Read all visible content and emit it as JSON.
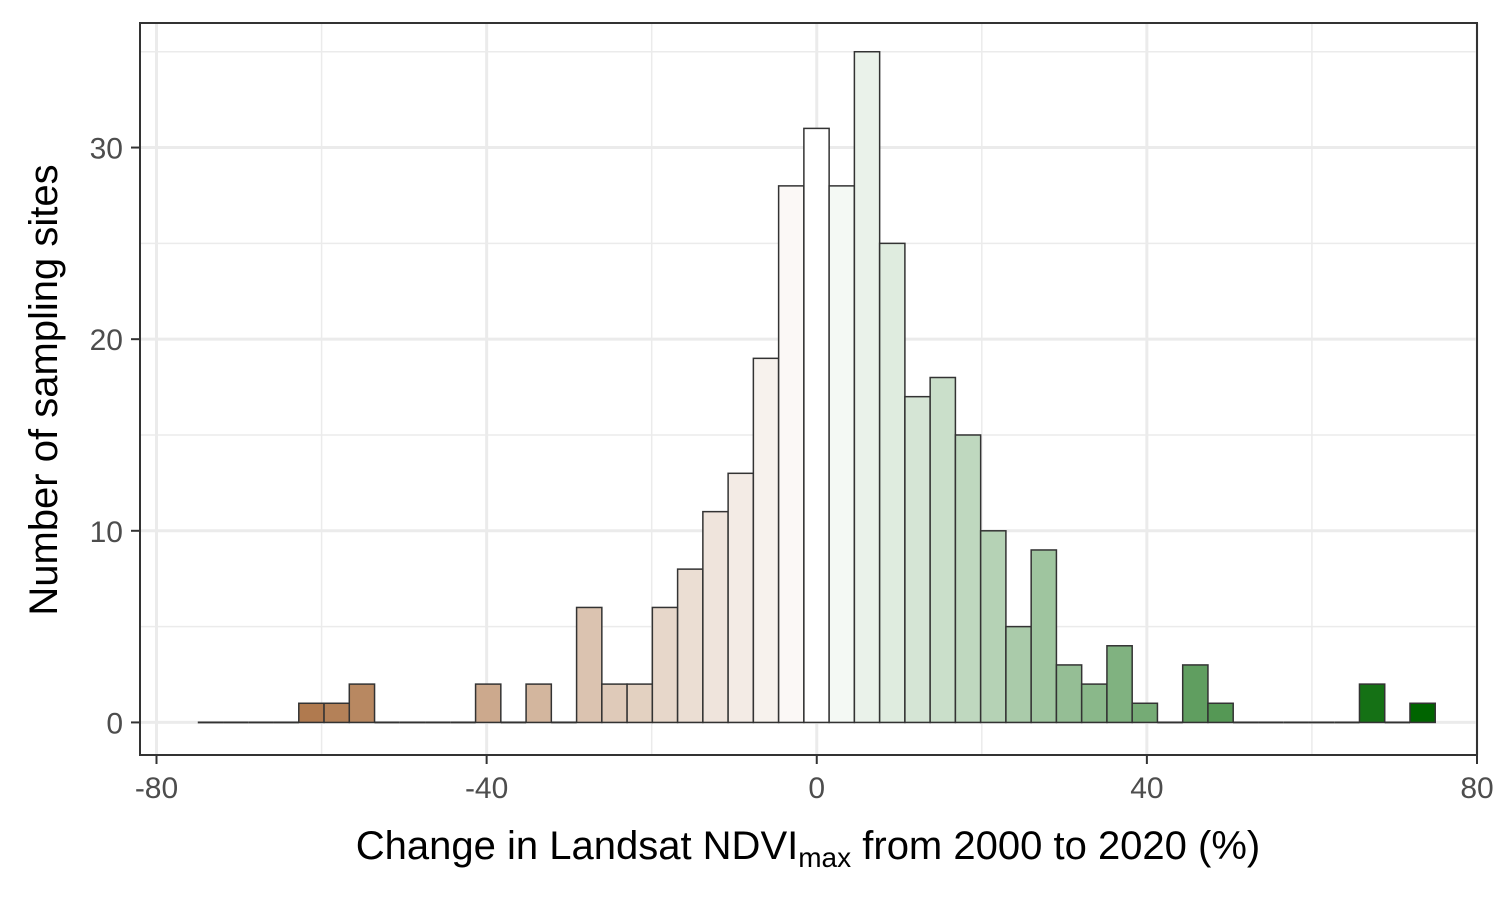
{
  "chart_data": {
    "type": "bar",
    "subtype": "histogram",
    "title": "",
    "xlabel": {
      "main": "Change in Landsat NDVI",
      "subscript": "max",
      "rest": " from 2000 to 2020 (%)"
    },
    "ylabel": "Number of sampling sites",
    "xlim": [
      -82,
      80
    ],
    "ylim": [
      -1.7,
      36.5
    ],
    "x_ticks": [
      -80,
      -40,
      0,
      40,
      80
    ],
    "y_ticks": [
      0,
      10,
      20,
      30
    ],
    "x_tick_labels": [
      "-80",
      "-40",
      "0",
      "40",
      "80"
    ],
    "y_tick_labels": [
      "0",
      "10",
      "20",
      "30"
    ],
    "grid": true,
    "legend": "none",
    "bin_width": 3.06,
    "bin_start": -75,
    "counts": [
      0,
      0,
      0,
      0,
      1,
      1,
      2,
      0,
      0,
      0,
      0,
      2,
      0,
      2,
      0,
      6,
      2,
      2,
      6,
      8,
      11,
      13,
      19,
      28,
      31,
      28,
      35,
      25,
      17,
      18,
      15,
      10,
      5,
      9,
      3,
      2,
      4,
      1,
      0,
      3,
      1,
      0,
      0,
      0,
      0,
      0,
      2,
      0,
      1
    ],
    "color_scale": {
      "negative": "#a0602c",
      "zero": "#ffffff",
      "positive": "#006400"
    },
    "baseline_color": "#333333"
  }
}
